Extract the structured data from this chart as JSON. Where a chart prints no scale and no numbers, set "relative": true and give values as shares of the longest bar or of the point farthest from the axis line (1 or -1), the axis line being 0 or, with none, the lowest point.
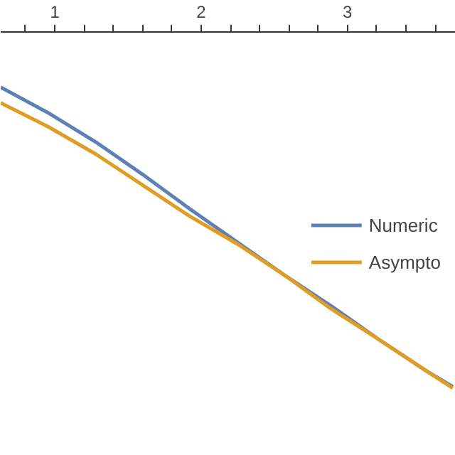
{
  "chart_data": {
    "type": "line",
    "relative": true,
    "xlim": [
      0.63,
      3.74
    ],
    "xticks": [
      {
        "value": 0.8,
        "label": null
      },
      1,
      {
        "value": 1.2,
        "label": null
      },
      {
        "value": 1.4,
        "label": null
      },
      {
        "value": 1.6,
        "label": null
      },
      {
        "value": 1.8,
        "label": null
      },
      2,
      {
        "value": 2.2,
        "label": null
      },
      {
        "value": 2.4,
        "label": null
      },
      {
        "value": 2.6,
        "label": null
      },
      {
        "value": 2.8,
        "label": null
      },
      3,
      {
        "value": 3.2,
        "label": null
      },
      {
        "value": 3.4,
        "label": null
      },
      {
        "value": 3.6,
        "label": null
      }
    ],
    "series": [
      {
        "name": "Numeric",
        "color": "#5e81b5",
        "x": [
          0.63,
          0.95,
          1.28,
          1.6,
          1.92,
          2.25,
          2.57,
          2.89,
          3.22,
          3.54,
          3.72
        ],
        "values": [
          -0.155,
          -0.226,
          -0.309,
          -0.4,
          -0.496,
          -0.591,
          -0.683,
          -0.77,
          -0.865,
          -0.952,
          -0.996
        ]
      },
      {
        "name": "Asympto",
        "color": "#e19c24",
        "x": [
          0.63,
          0.95,
          1.28,
          1.6,
          1.92,
          2.25,
          2.57,
          2.89,
          3.22,
          3.54,
          3.72
        ],
        "values": [
          -0.199,
          -0.265,
          -0.343,
          -0.43,
          -0.517,
          -0.596,
          -0.683,
          -0.778,
          -0.865,
          -0.952,
          -1.0
        ]
      }
    ],
    "legend": "right",
    "grid": false
  }
}
